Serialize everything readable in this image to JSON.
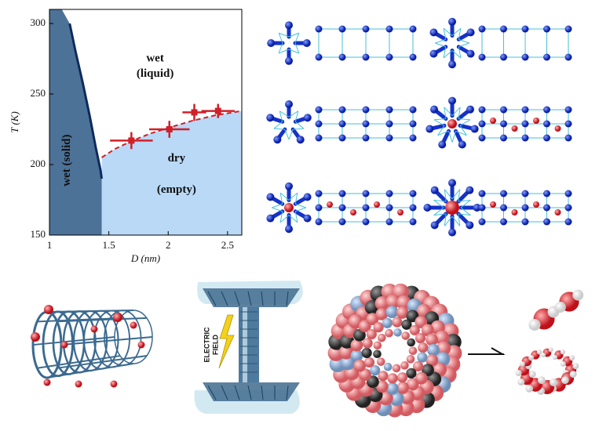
{
  "chart_data": {
    "type": "line",
    "xlabel": "D (nm)",
    "ylabel": "T (K)",
    "xlim": [
      1,
      2.62
    ],
    "ylim": [
      150,
      310
    ],
    "xticks": [
      1,
      1.5,
      2,
      2.5
    ],
    "yticks": [
      150,
      200,
      250,
      300
    ],
    "series": [
      {
        "color": "#0e2a5c",
        "fill": "#4d7297",
        "x": [
          1.17,
          1.22,
          1.28,
          1.34,
          1.39,
          1.43,
          1.44
        ],
        "values": [
          300,
          280,
          258,
          234,
          212,
          196,
          190
        ]
      },
      {
        "color": "#d0202a",
        "dash": true,
        "fill": "#b9d9f6",
        "x": [
          1.44,
          1.55,
          1.7,
          1.85,
          2.0,
          2.2,
          2.4,
          2.62
        ],
        "values": [
          205,
          211,
          217,
          222,
          226,
          231,
          235,
          238
        ]
      },
      {
        "color": "#d0202a",
        "style": "errorbar",
        "x": [
          1.69,
          2.01,
          2.22,
          2.42
        ],
        "values": [
          217,
          225,
          237,
          238
        ],
        "xerr": [
          0.18,
          0.17,
          0.1,
          0.14
        ],
        "yerr": [
          6,
          6,
          6,
          5
        ]
      }
    ],
    "annotations": [
      {
        "text": "wet",
        "x": 1.89,
        "y": 275
      },
      {
        "text": "(liquid)",
        "x": 1.89,
        "y": 264
      },
      {
        "text": "dry",
        "x": 2.07,
        "y": 204
      },
      {
        "text": "(empty)",
        "x": 2.07,
        "y": 182
      },
      {
        "text": "wet (solid)",
        "x": 1.15,
        "y": 203,
        "rotate": -90
      }
    ]
  },
  "illustration": {
    "field_label": [
      "ELECTRIC",
      "FIELD"
    ]
  }
}
